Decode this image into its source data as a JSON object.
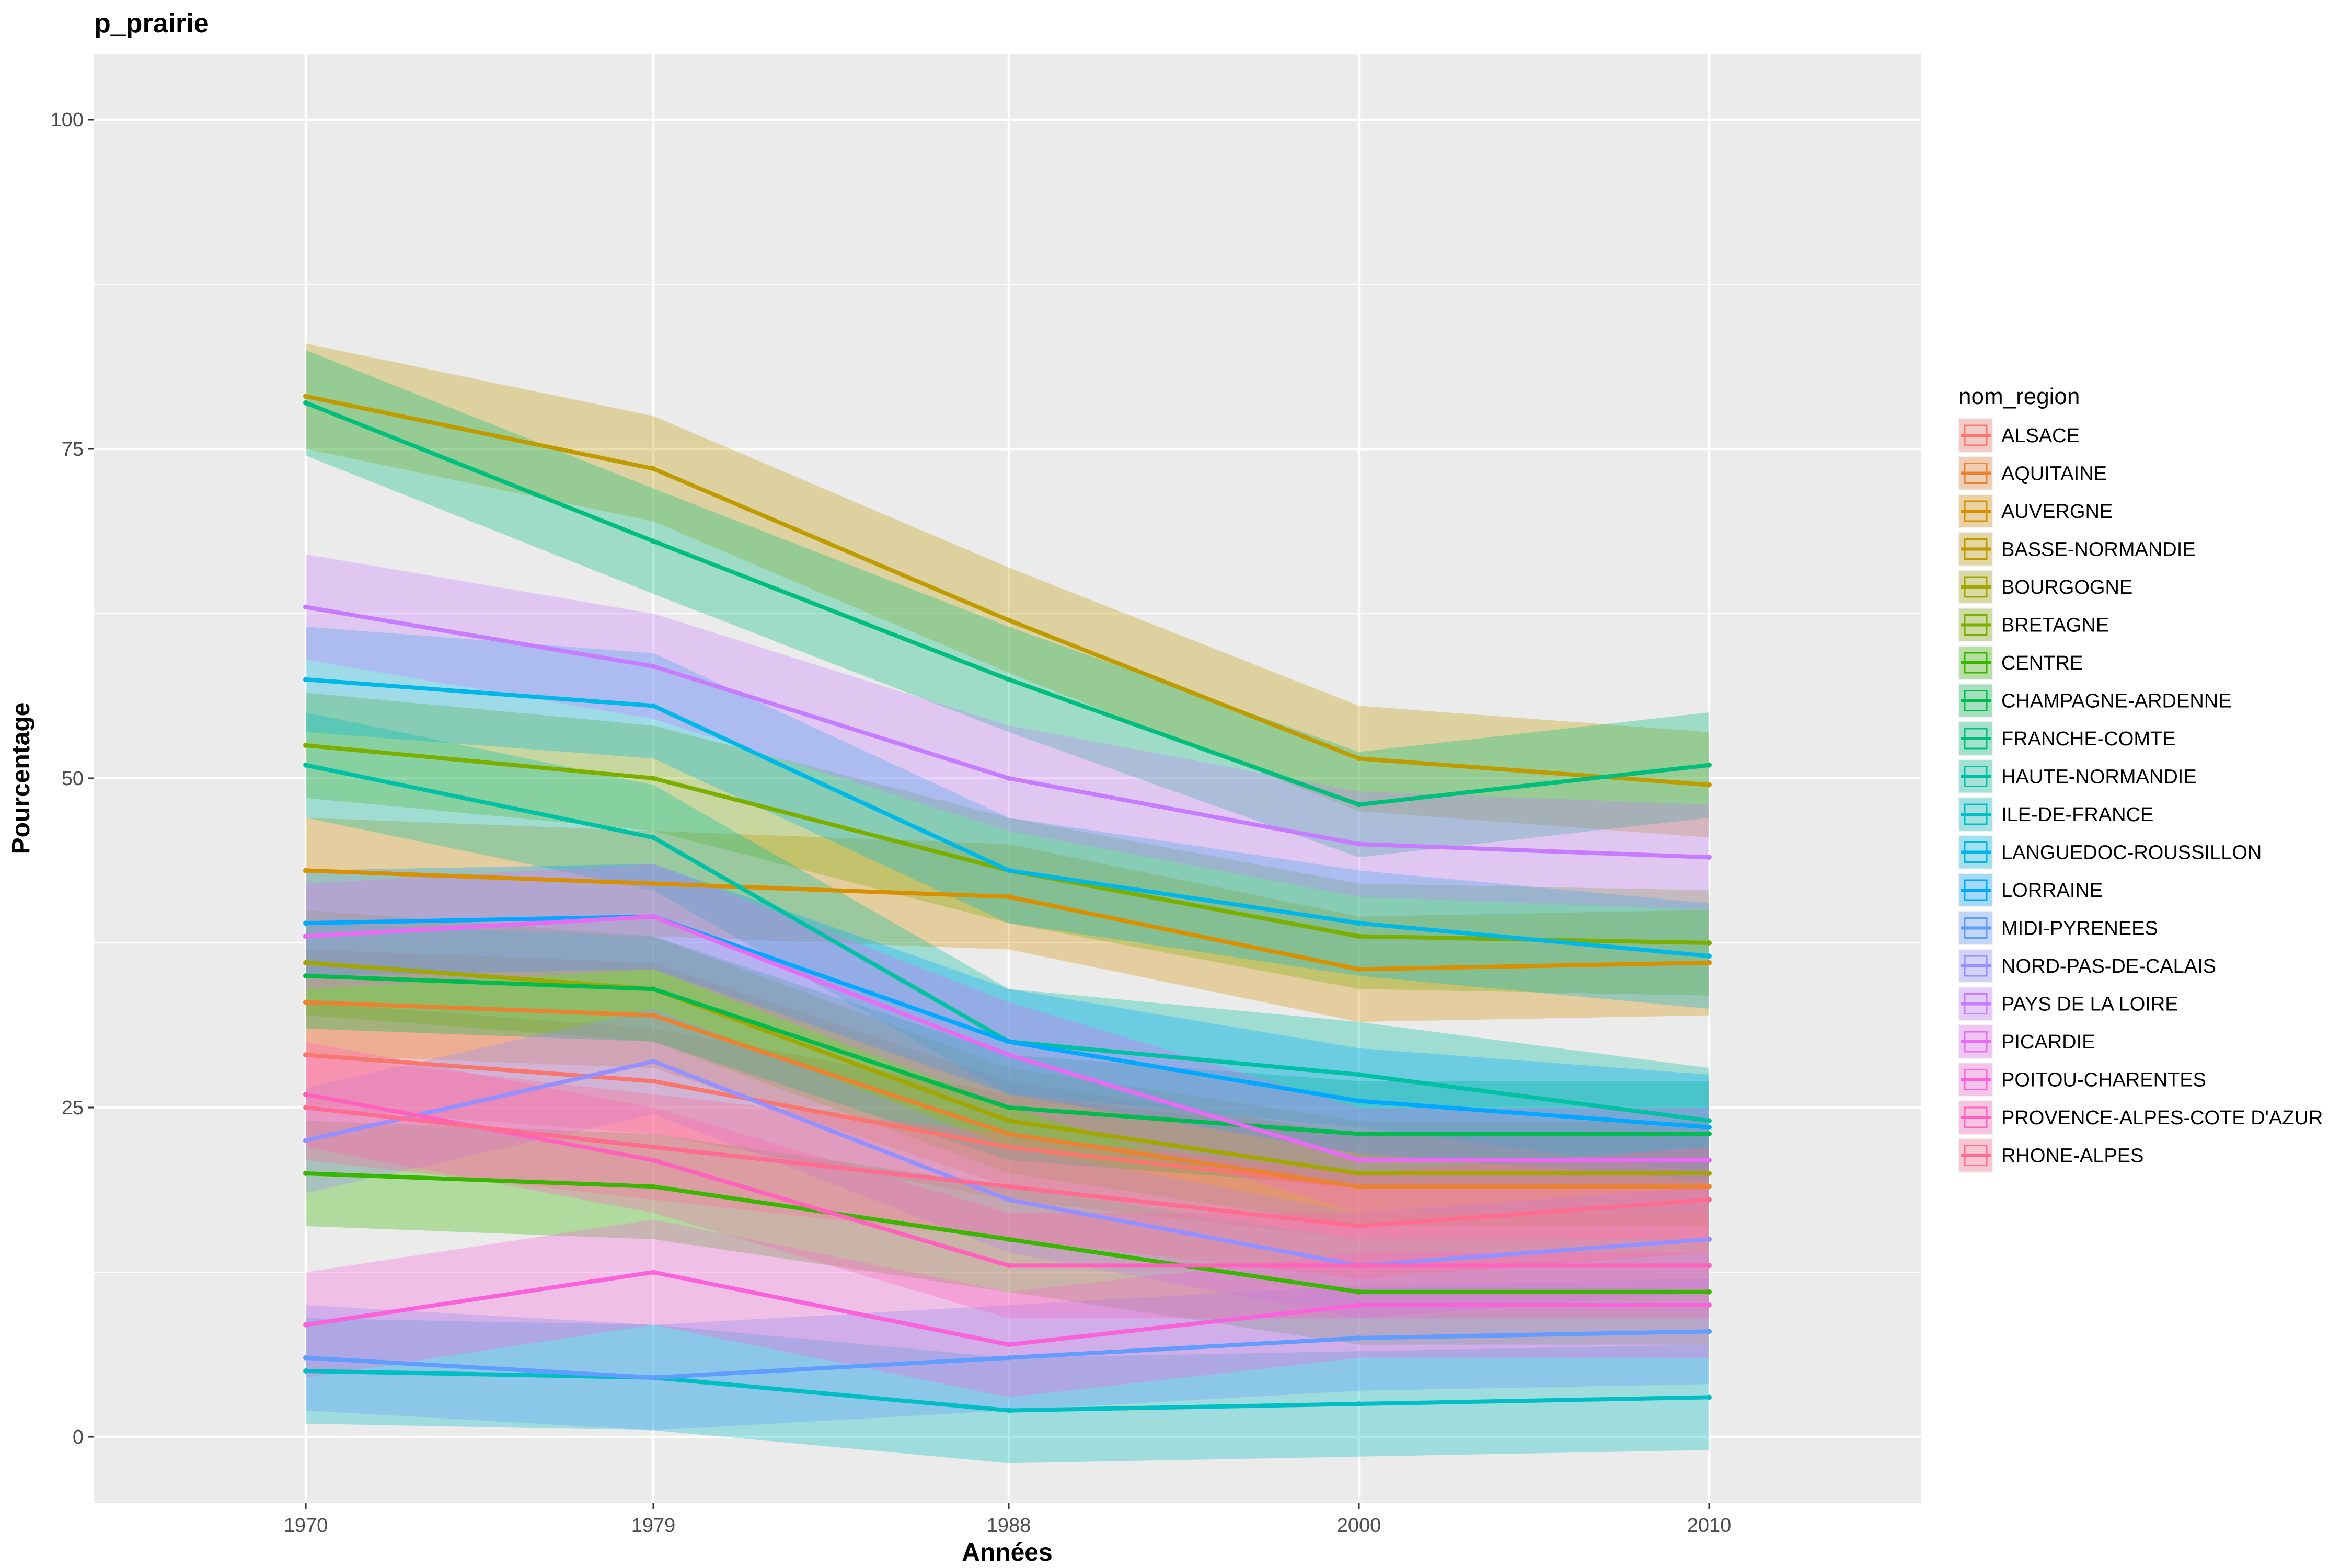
{
  "chart_data": {
    "type": "line",
    "title": "p_prairie",
    "xlabel": "Années",
    "ylabel": "Pourcentage",
    "x": [
      1970,
      1979,
      1988,
      2000,
      2010
    ],
    "x_ticks": [
      "1970",
      "1979",
      "1988",
      "2000",
      "2010"
    ],
    "y_ticks": [
      0,
      25,
      50,
      75,
      100
    ],
    "ylim": [
      -5,
      105
    ],
    "grid": true,
    "legend": {
      "title": "nom_region",
      "placement": "right"
    },
    "band_halfwidth": 4,
    "series": [
      {
        "name": "ALSACE",
        "color": "#F8766D",
        "values": [
          29,
          27,
          22,
          19,
          19
        ]
      },
      {
        "name": "AQUITAINE",
        "color": "#EA8331",
        "values": [
          33,
          32,
          23,
          19,
          19
        ]
      },
      {
        "name": "AUVERGNE",
        "color": "#D89000",
        "values": [
          43,
          42,
          41,
          35.5,
          36
        ]
      },
      {
        "name": "BASSE-NORMANDIE",
        "color": "#C09B00",
        "values": [
          79,
          73.5,
          62,
          51.5,
          49.5
        ]
      },
      {
        "name": "BOURGOGNE",
        "color": "#A3A500",
        "values": [
          36,
          34,
          24,
          20,
          20
        ]
      },
      {
        "name": "BRETAGNE",
        "color": "#7CAE00",
        "values": [
          52.5,
          50,
          43,
          38,
          37.5
        ]
      },
      {
        "name": "CENTRE",
        "color": "#39B600",
        "values": [
          20,
          19,
          15,
          11,
          11
        ]
      },
      {
        "name": "CHAMPAGNE-ARDENNE",
        "color": "#00BB4E",
        "values": [
          35,
          34,
          25,
          23,
          23
        ]
      },
      {
        "name": "FRANCHE-COMTE",
        "color": "#00BF7D",
        "values": [
          78.5,
          68,
          57.5,
          48,
          51
        ]
      },
      {
        "name": "HAUTE-NORMANDIE",
        "color": "#00C1A3",
        "values": [
          51,
          45.5,
          30,
          27.5,
          24
        ]
      },
      {
        "name": "ILE-DE-FRANCE",
        "color": "#00BFC4",
        "values": [
          5,
          4.5,
          2,
          2.5,
          3
        ]
      },
      {
        "name": "LANGUEDOC-ROUSSILLON",
        "color": "#00B8E7",
        "values": [
          57.5,
          55.5,
          43,
          39,
          36.5
        ]
      },
      {
        "name": "LORRAINE",
        "color": "#00A9FF",
        "values": [
          39,
          39.5,
          30,
          25.5,
          23.5
        ]
      },
      {
        "name": "MIDI-PYRENEES",
        "color": "#619CFF",
        "values": [
          6,
          4.5,
          6,
          7.5,
          8
        ]
      },
      {
        "name": "NORD-PAS-DE-CALAIS",
        "color": "#9590FF",
        "values": [
          22.5,
          28.5,
          18,
          13,
          15
        ]
      },
      {
        "name": "PAYS DE LA LOIRE",
        "color": "#C77CFF",
        "values": [
          63,
          58.5,
          50,
          45,
          44
        ]
      },
      {
        "name": "PICARDIE",
        "color": "#E76BF3",
        "values": [
          38,
          39.5,
          29,
          21,
          21
        ]
      },
      {
        "name": "POITOU-CHARENTES",
        "color": "#FA62DB",
        "values": [
          8.5,
          12.5,
          7,
          10,
          10
        ]
      },
      {
        "name": "PROVENCE-ALPES-COTE D'AZUR",
        "color": "#FF62BC",
        "values": [
          26,
          21,
          13,
          13,
          13
        ]
      },
      {
        "name": "RHONE-ALPES",
        "color": "#FF6C91",
        "values": [
          25,
          22,
          19,
          16,
          18
        ]
      }
    ]
  }
}
